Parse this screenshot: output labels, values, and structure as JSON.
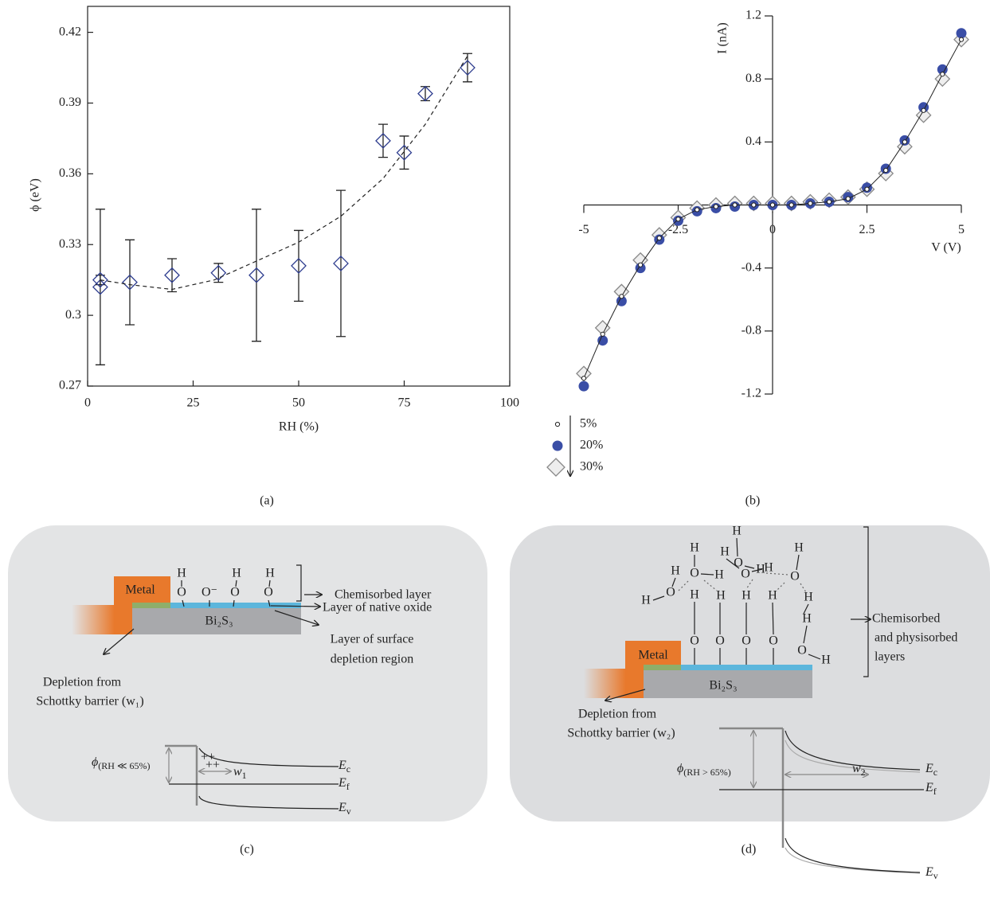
{
  "chart_data": [
    {
      "type": "scatter",
      "caption": "(a)",
      "xlabel": "RH (%)",
      "ylabel": "ϕ (eV)",
      "xlim": [
        0,
        100
      ],
      "ylim": [
        0.27,
        0.431
      ],
      "xticks": [
        0,
        25,
        50,
        75,
        100
      ],
      "yticks": [
        0.27,
        0.3,
        0.33,
        0.36,
        0.39,
        0.42
      ],
      "frame": true,
      "series": [
        {
          "color": "#2e3d8f",
          "marker": "diamond",
          "x": [
            3,
            3,
            10,
            20,
            31,
            40,
            50,
            60,
            70,
            75,
            80,
            90
          ],
          "values": [
            0.312,
            0.315,
            0.314,
            0.317,
            0.318,
            0.317,
            0.321,
            0.322,
            0.374,
            0.369,
            0.394,
            0.405
          ],
          "errors": [
            0.033,
            0.002,
            0.018,
            0.007,
            0.004,
            0.028,
            0.015,
            0.031,
            0.007,
            0.007,
            0.003,
            0.006
          ]
        },
        {
          "color": "#222222",
          "style": "dashed",
          "x": [
            3,
            10,
            20,
            30,
            40,
            50,
            60,
            70,
            80,
            90
          ],
          "values": [
            0.315,
            0.313,
            0.311,
            0.315,
            0.323,
            0.331,
            0.342,
            0.358,
            0.381,
            0.41
          ]
        }
      ]
    },
    {
      "type": "scatter",
      "caption": "(b)",
      "xlabel": "V (V)",
      "ylabel": "I (nA)",
      "xlim": [
        -5,
        5
      ],
      "ylim": [
        -1.2,
        1.2
      ],
      "xticks": [
        -5,
        -2.5,
        0,
        2.5,
        5
      ],
      "yticks": [
        -1.2,
        -0.8,
        -0.4,
        0.4,
        0.8,
        1.2
      ],
      "x": [
        -5,
        -4.5,
        -4,
        -3.5,
        -3,
        -2.5,
        -2,
        -1.5,
        -1,
        -0.5,
        0,
        0.5,
        1,
        1.5,
        2,
        2.5,
        3,
        3.5,
        4,
        4.5,
        5
      ],
      "series": [
        {
          "name": "30%",
          "marker": "diamond",
          "color": "#eeeeee",
          "edge": "#888888",
          "values": [
            -1.07,
            -0.78,
            -0.55,
            -0.35,
            -0.19,
            -0.08,
            -0.02,
            0,
            0.01,
            0.01,
            0.01,
            0.01,
            0.02,
            0.03,
            0.05,
            0.1,
            0.2,
            0.37,
            0.57,
            0.8,
            1.05
          ]
        },
        {
          "name": "20%",
          "marker": "circle",
          "color": "#3a4ea6",
          "edge": "#3a4ea6",
          "values": [
            -1.15,
            -0.86,
            -0.61,
            -0.4,
            -0.22,
            -0.1,
            -0.04,
            -0.02,
            -0.01,
            0,
            0,
            0,
            0.01,
            0.02,
            0.05,
            0.11,
            0.23,
            0.41,
            0.62,
            0.86,
            1.09
          ]
        },
        {
          "name": "5%",
          "marker": "small-circle",
          "color": "#ffffff",
          "edge": "#222222",
          "values": [
            -1.1,
            -0.82,
            -0.58,
            -0.38,
            -0.21,
            -0.09,
            -0.03,
            -0.01,
            0,
            0,
            0,
            0,
            0.01,
            0.02,
            0.04,
            0.1,
            0.22,
            0.4,
            0.6,
            0.83,
            1.05
          ]
        }
      ]
    }
  ],
  "diagrams": [
    {
      "caption": "(c)",
      "metal": "Metal",
      "substrate": "Bi₂S₃",
      "atoms": [
        "H",
        "O",
        "O⁻",
        "H",
        "O",
        "H",
        "O"
      ],
      "chemisorbed": "Chemisorbed layer",
      "oxide": "Layer of native oxide",
      "surface": [
        "Layer of surface",
        "depletion region"
      ],
      "schottky": [
        "Depletion from",
        "Schottky barrier (w₁)"
      ],
      "phi": {
        "symbol": "ϕ",
        "sub": "(RH ≪ 65%)"
      },
      "width": {
        "symbol": "w",
        "sub": "1"
      },
      "charges": [
        "++",
        "++"
      ],
      "levels": [
        {
          "symbol": "E",
          "sub": "c"
        },
        {
          "symbol": "E",
          "sub": "f"
        },
        {
          "symbol": "E",
          "sub": "v"
        }
      ]
    },
    {
      "caption": "(d)",
      "metal": "Metal",
      "substrate": "Bi₂S₃",
      "atoms": [
        "H",
        "O",
        "H",
        "H",
        "H",
        "O",
        "H",
        "O",
        "H",
        "H",
        "O",
        "H",
        "H",
        "O",
        "H",
        "H",
        "H",
        "H",
        "H",
        "O",
        "O",
        "O",
        "O",
        "H",
        "O",
        "H"
      ],
      "layers": [
        "Chemisorbed",
        "and physisorbed",
        "layers"
      ],
      "schottky": [
        "Depletion from",
        "Schottky barrier (w₂)"
      ],
      "phi": {
        "symbol": "ϕ",
        "sub": "(RH > 65%)"
      },
      "width": {
        "symbol": "w",
        "sub": "2"
      },
      "levels": [
        {
          "symbol": "E",
          "sub": "c"
        },
        {
          "symbol": "E",
          "sub": "f"
        },
        {
          "symbol": "E",
          "sub": "v"
        }
      ]
    }
  ]
}
